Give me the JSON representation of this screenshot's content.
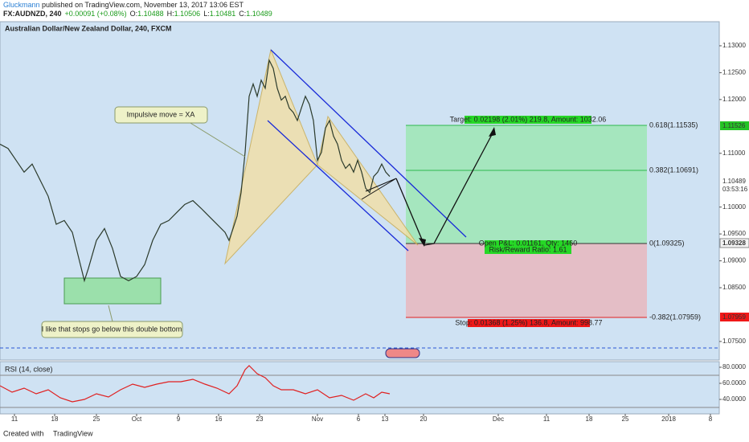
{
  "header": {
    "author": "Gluckmann",
    "published": " published on TradingView.com, November 13, 2017 13:06 EST",
    "symbol": "FX:AUDNZD, 240",
    "change": "+0.00091 (+0.08%)",
    "o_label": "O:",
    "open": "1.10488",
    "h_label": "H:",
    "high": "1.10506",
    "l_label": "L:",
    "low": "1.10481",
    "c_label": "C:",
    "close": "1.10489"
  },
  "chart_data": [
    {
      "type": "line",
      "title": "Australian Dollar/New Zealand Dollar, 240, FXCM",
      "x": [
        0,
        1,
        2,
        3,
        4,
        5,
        6,
        7,
        8,
        9,
        10,
        10.5,
        11,
        12,
        13,
        14,
        15,
        16,
        17,
        18,
        19,
        20,
        21,
        22,
        23,
        24,
        25,
        26,
        27,
        28,
        28.5,
        29,
        29.5,
        30,
        30.5,
        31,
        31.5,
        32,
        32.5,
        33,
        33.5,
        34,
        34.5,
        35,
        35.5,
        36,
        36.5,
        37,
        37.5,
        38,
        38.5,
        39,
        39.5,
        40,
        40.5,
        41,
        41.5,
        42,
        42.5,
        43,
        43.5,
        44,
        44.5,
        45,
        45.5,
        46,
        46.5,
        47,
        47.5,
        48,
        48.5
      ],
      "series": [
        {
          "name": "AUDNZD",
          "color": "#2b3a2b",
          "values": [
            1.1117,
            1.1109,
            1.1087,
            1.1065,
            1.108,
            1.105,
            1.102,
            1.0968,
            1.0975,
            1.0953,
            1.0893,
            1.0863,
            1.0886,
            1.0938,
            1.096,
            1.0923,
            1.0871,
            1.0863,
            1.0871,
            1.0893,
            1.0938,
            1.0968,
            1.0975,
            1.099,
            1.1005,
            1.1012,
            1.0998,
            1.0983,
            1.0968,
            1.0953,
            1.0938,
            1.096,
            1.0983,
            1.1027,
            1.1102,
            1.1206,
            1.1229,
            1.1206,
            1.1236,
            1.1221,
            1.1273,
            1.1258,
            1.1221,
            1.1199,
            1.1206,
            1.1184,
            1.1176,
            1.1161,
            1.1184,
            1.1206,
            1.1191,
            1.1161,
            1.1087,
            1.1102,
            1.1147,
            1.1161,
            1.1132,
            1.1117,
            1.1087,
            1.1072,
            1.108,
            1.1065,
            1.1087,
            1.1065,
            1.1035,
            1.1027,
            1.1057,
            1.1065,
            1.108,
            1.1065,
            1.1057
          ]
        }
      ],
      "xlim": [
        0,
        89.5
      ],
      "ylim": [
        1.07155,
        1.13433
      ],
      "xticks": [
        {
          "value": 1.8,
          "label": "11"
        },
        {
          "value": 6.8,
          "label": "18"
        },
        {
          "value": 12,
          "label": "25"
        },
        {
          "value": 17,
          "label": "Oct"
        },
        {
          "value": 22.2,
          "label": "9"
        },
        {
          "value": 27.2,
          "label": "16"
        },
        {
          "value": 32.3,
          "label": "23"
        },
        {
          "value": 39.5,
          "label": "Nov"
        },
        {
          "value": 44.6,
          "label": "6"
        },
        {
          "value": 47.9,
          "label": "13"
        },
        {
          "value": 52.7,
          "label": "20"
        },
        {
          "value": 62,
          "label": "Dec"
        },
        {
          "value": 68,
          "label": "11"
        },
        {
          "value": 73.3,
          "label": "18"
        },
        {
          "value": 77.8,
          "label": "25"
        },
        {
          "value": 83.2,
          "label": "2018"
        },
        {
          "value": 88.4,
          "label": "8"
        }
      ],
      "yticks": [
        {
          "value": 1.13,
          "label": "1.13000"
        },
        {
          "value": 1.125,
          "label": "1.12500"
        },
        {
          "value": 1.12,
          "label": "1.12000"
        },
        {
          "value": 1.11,
          "label": "1.11000"
        },
        {
          "value": 1.1,
          "label": "1.10000"
        },
        {
          "value": 1.095,
          "label": "1.09500"
        },
        {
          "value": 1.09,
          "label": "1.09000"
        },
        {
          "value": 1.085,
          "label": "1.08500"
        },
        {
          "value": 1.075,
          "label": "1.07500"
        }
      ],
      "grid": false,
      "annotations": [
        "Impulsive move = XA",
        "I like that stops go below this double bottom"
      ],
      "position": {
        "target": "Target: 0.02198 (2.01%) 219.8, Amount: 1032.06",
        "open_pl": "Open P&L: 0.01161, Qty: 1460",
        "risk_reward": "Risk/Reward Ratio: 1.61",
        "stop": "Stop: 0.01368 (1.25%) 136.8, Amount: 998.77"
      },
      "fib_labels": [
        "0.618(1.11535)",
        "0.382(1.10691)",
        "0(1.09325)",
        "-0.382(1.07959)"
      ],
      "price_badges": [
        "1.11526",
        "1.10489",
        "03:53:16",
        "1.09328",
        "1.07959"
      ]
    },
    {
      "type": "line",
      "title": "RSI (14, close)",
      "x": [
        0,
        1.5,
        3,
        4.5,
        6,
        7.5,
        9,
        10.5,
        12,
        13.5,
        15,
        16.5,
        18,
        19.5,
        21,
        22.5,
        24,
        25.5,
        27,
        28.5,
        29.5,
        30.5,
        31,
        32,
        33,
        34,
        35,
        36.5,
        38,
        39.5,
        41,
        42.5,
        44,
        45.5,
        46.5,
        47.5,
        48.5
      ],
      "series": [
        {
          "name": "RSI",
          "color": "#e02020",
          "values": [
            57,
            49,
            54,
            47,
            52,
            42,
            37,
            40,
            47,
            43,
            52,
            59,
            55,
            59,
            62,
            62,
            65,
            59,
            54,
            47,
            57,
            77,
            82,
            72,
            67,
            57,
            52,
            52,
            47,
            52,
            42,
            45,
            39,
            47,
            42,
            49,
            47
          ]
        }
      ],
      "xlim": [
        0,
        89.5
      ],
      "ylim": [
        22,
        87
      ],
      "yticks": [
        {
          "value": 80,
          "label": "80.0000"
        },
        {
          "value": 60,
          "label": "60.0000"
        },
        {
          "value": 40,
          "label": "40.0000"
        }
      ]
    }
  ],
  "footer": {
    "created": "Created with",
    "brand": "TradingView"
  }
}
